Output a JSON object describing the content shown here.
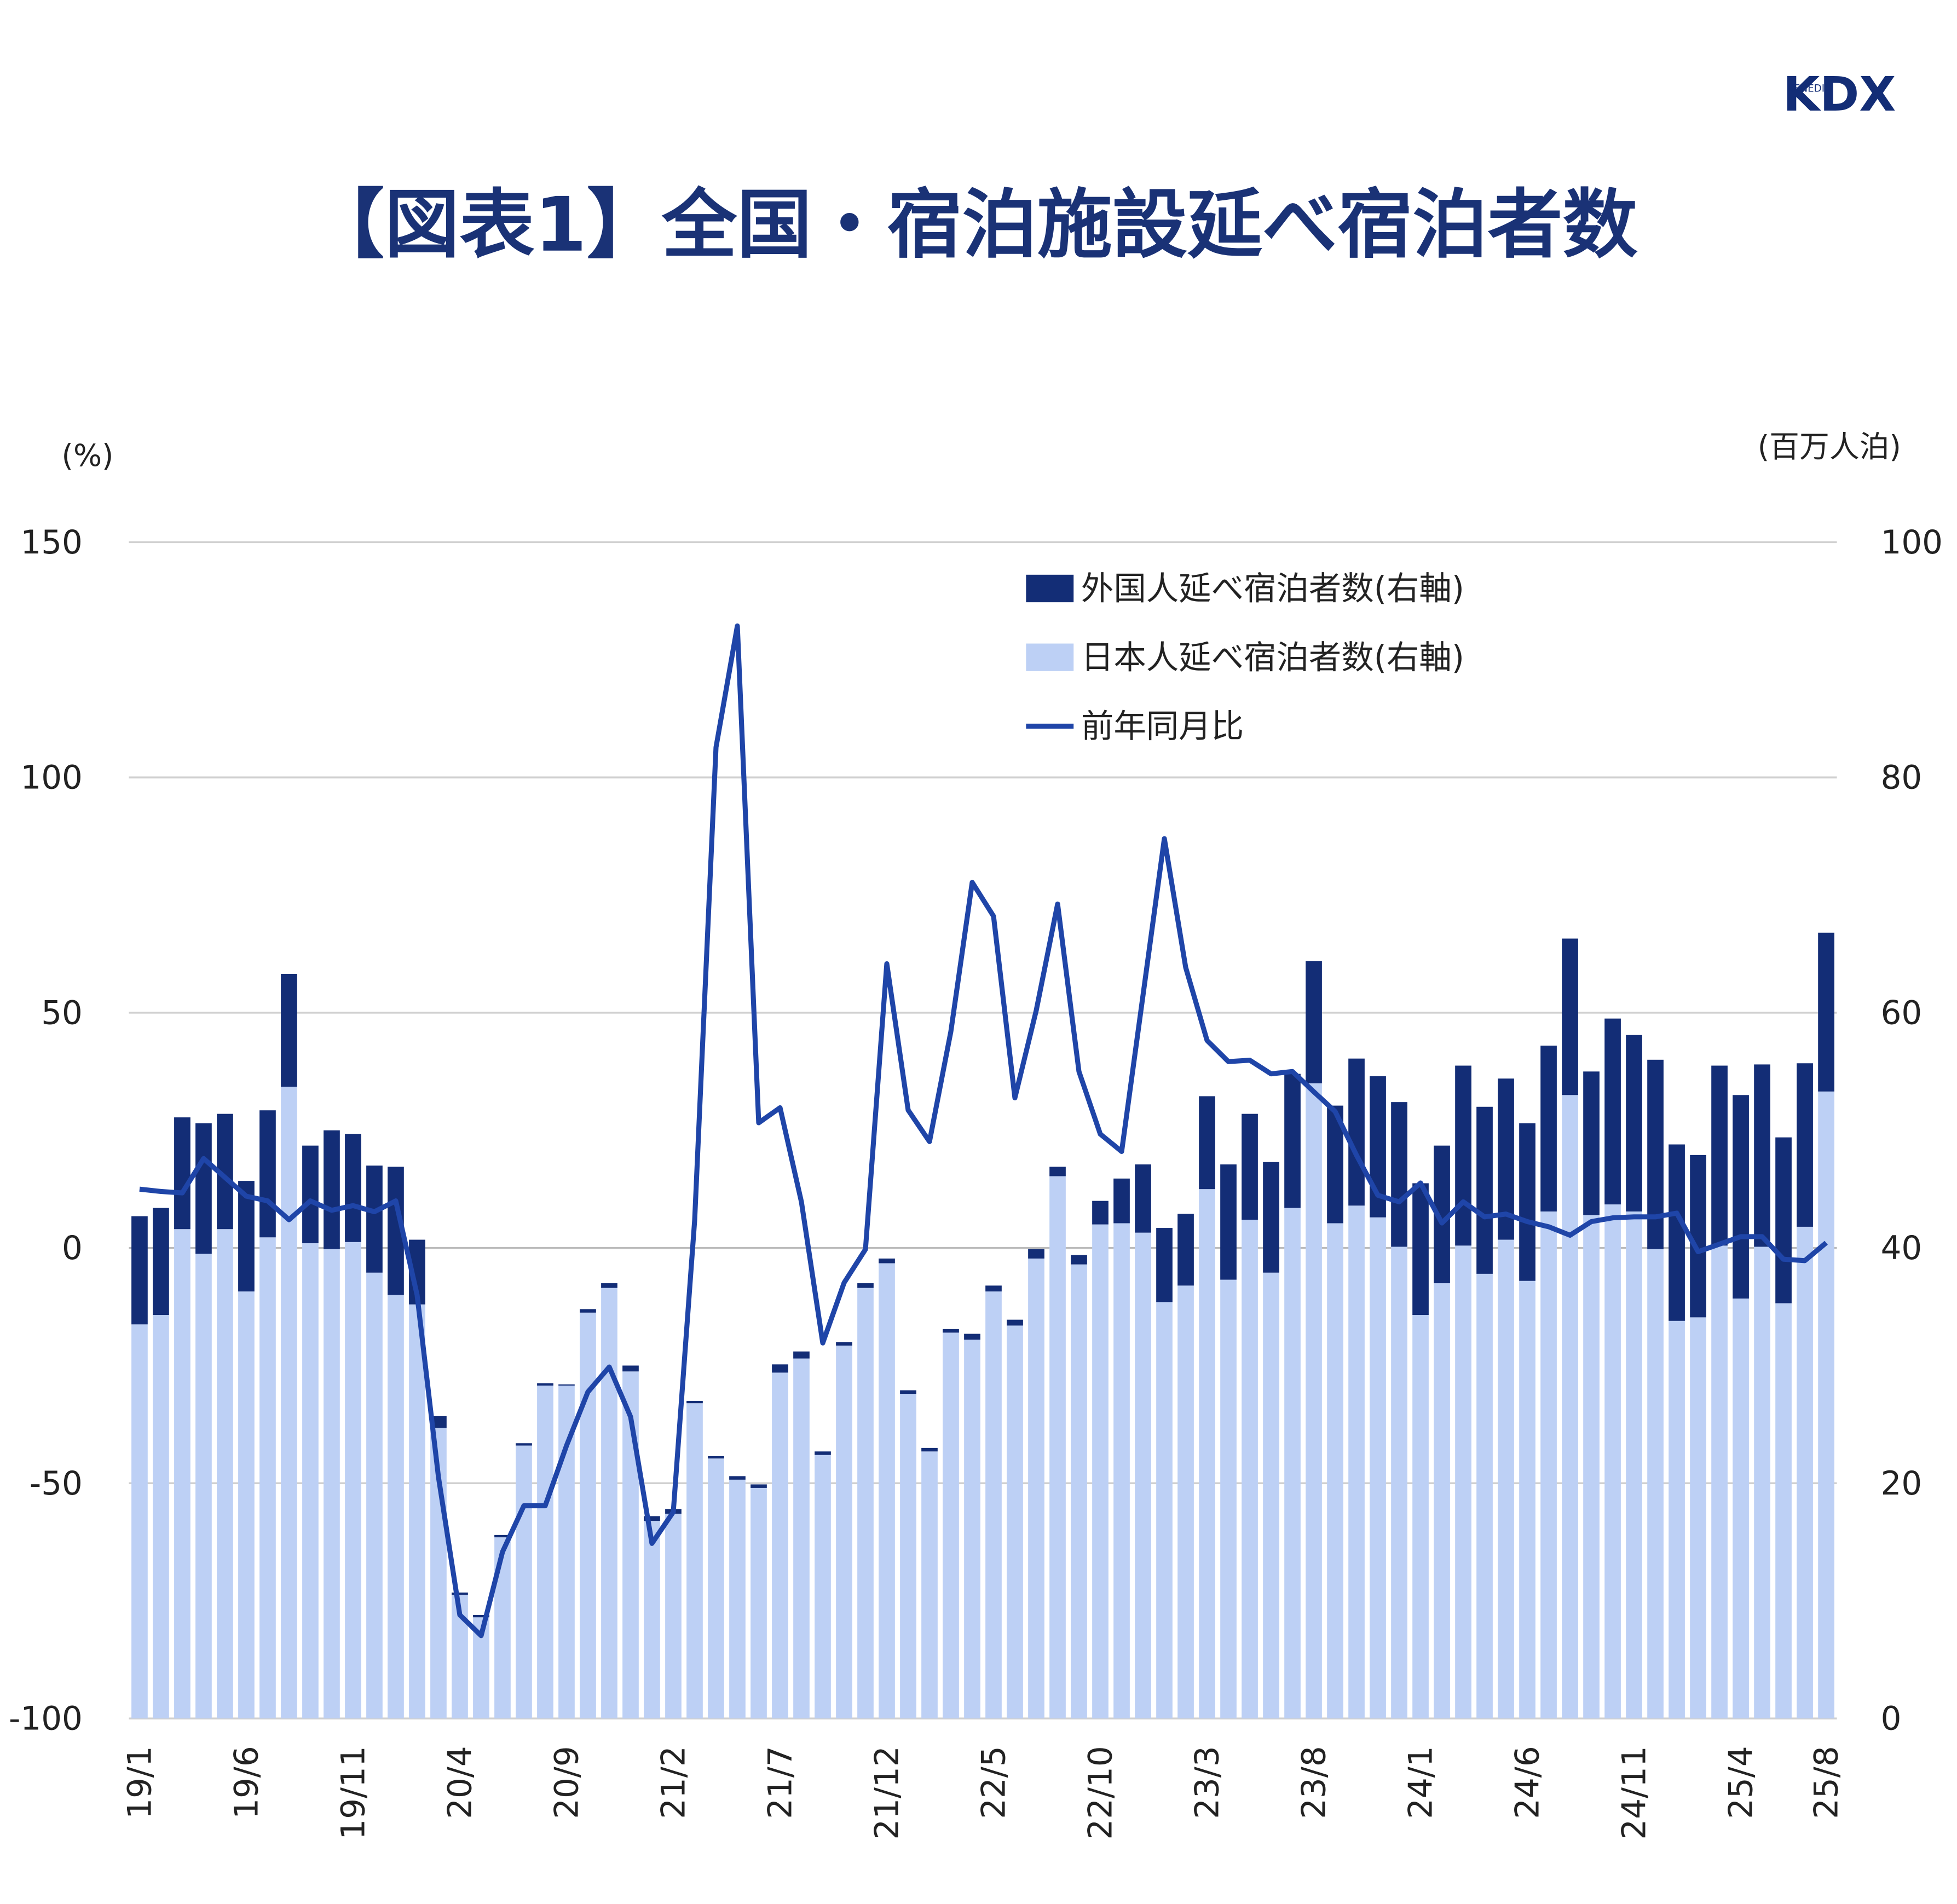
{
  "logo": {
    "name": "KDX",
    "sub": "KENEDIX"
  },
  "chart_data": {
    "type": "bar-line",
    "title": "【図表1】全国・宿泊施設延べ宿泊者数",
    "y_label": "(%)",
    "y2_label": "(百万人泊)",
    "categories": [
      "19/1",
      null,
      null,
      null,
      null,
      "19/6",
      null,
      null,
      null,
      null,
      "19/11",
      null,
      null,
      null,
      null,
      "20/4",
      null,
      null,
      null,
      null,
      "20/9",
      null,
      null,
      null,
      null,
      "21/2",
      null,
      null,
      null,
      null,
      "21/7",
      null,
      null,
      null,
      null,
      "21/12",
      null,
      null,
      null,
      null,
      "22/5",
      null,
      null,
      null,
      null,
      "22/10",
      null,
      null,
      null,
      null,
      "23/3",
      null,
      null,
      null,
      null,
      "23/8",
      null,
      null,
      null,
      null,
      "24/1",
      null,
      null,
      null,
      null,
      "24/6",
      null,
      null,
      null,
      null,
      "24/11",
      null,
      null,
      null,
      null,
      "25/4",
      null,
      null,
      null,
      "25/8"
    ],
    "series": [
      {
        "name": "外国人延べ宿泊者数(右軸)",
        "kind": "bar",
        "axis": "y2",
        "color": "#132d76",
        "values": [
          9.2,
          9.1,
          9.5,
          11.1,
          9.8,
          9.4,
          10.8,
          9.6,
          8.3,
          10.1,
          9.2,
          9.1,
          10.9,
          5.5,
          1.0,
          0.2,
          0.2,
          0.2,
          0.2,
          0.2,
          0.1,
          0.3,
          0.4,
          0.5,
          0.4,
          0.4,
          0.2,
          0.2,
          0.3,
          0.3,
          0.7,
          0.6,
          0.3,
          0.3,
          0.4,
          0.4,
          0.3,
          0.3,
          0.3,
          0.5,
          0.5,
          0.5,
          0.8,
          0.8,
          0.8,
          2.0,
          3.8,
          5.8,
          6.3,
          6.1,
          7.9,
          9.8,
          9.0,
          9.4,
          11.4,
          10.4,
          10.0,
          12.5,
          12.0,
          12.3,
          11.2,
          11.7,
          15.3,
          14.2,
          13.7,
          13.4,
          14.1,
          13.3,
          12.2,
          15.8,
          15.0,
          16.1,
          15.0,
          13.8,
          15.3,
          17.3,
          15.5,
          14.1,
          13.9,
          13.5
        ]
      },
      {
        "name": "日本人延べ宿泊者数(右軸)",
        "kind": "bar",
        "axis": "y2",
        "color": "#bdd0f5",
        "values": [
          33.5,
          34.3,
          41.6,
          39.5,
          41.6,
          36.3,
          40.9,
          53.7,
          40.4,
          39.9,
          40.5,
          37.9,
          36.0,
          35.2,
          24.7,
          10.5,
          8.6,
          15.4,
          23.2,
          28.3,
          28.3,
          34.5,
          36.6,
          29.5,
          16.8,
          17.4,
          26.8,
          22.1,
          20.3,
          19.6,
          29.4,
          30.6,
          22.4,
          31.7,
          36.6,
          38.7,
          27.6,
          22.7,
          32.8,
          32.2,
          36.3,
          33.4,
          39.1,
          46.1,
          38.6,
          42.0,
          42.1,
          41.3,
          35.4,
          36.8,
          45.0,
          37.3,
          42.4,
          37.9,
          43.4,
          54.0,
          42.1,
          43.6,
          42.6,
          40.1,
          34.3,
          37.0,
          40.2,
          37.8,
          40.7,
          37.2,
          43.1,
          53.0,
          42.8,
          43.7,
          43.1,
          39.9,
          33.8,
          34.1,
          40.2,
          35.7,
          40.1,
          35.3,
          41.8,
          53.3
        ]
      },
      {
        "name": "前年同月比",
        "kind": "line",
        "axis": "y",
        "color": "#1f45a8",
        "values": [
          12.5,
          12,
          11.7,
          19,
          15,
          11,
          10,
          6,
          10,
          8,
          9,
          7.7,
          10,
          -10,
          -48.7,
          -78,
          -82.4,
          -64.6,
          -54.8,
          -54.8,
          -42,
          -30.6,
          -25.3,
          -35.9,
          -62.8,
          -56.1,
          5.9,
          106.4,
          132.2,
          26.6,
          29.8,
          9.8,
          -20.2,
          -7.4,
          -0.3,
          60.4,
          29.3,
          22.6,
          46,
          77.7,
          70.5,
          31.9,
          50.5,
          73.1,
          37.5,
          24.2,
          20.5,
          53.7,
          87,
          59.6,
          44.1,
          39.6,
          39.9,
          37,
          37.5,
          33.2,
          29,
          19.7,
          11.2,
          9.8,
          13.8,
          5.3,
          9.8,
          6.6,
          7.2,
          5.6,
          4.5,
          2.7,
          5.6,
          6.4,
          6.6,
          6.6,
          7.4,
          -0.8,
          0.8,
          2.4,
          2.4,
          -2.4,
          -2.7,
          1.1
        ]
      }
    ],
    "ylim": [
      -100,
      150
    ],
    "yticks": [
      -100,
      -50,
      0,
      50,
      100,
      150
    ],
    "y2lim": [
      0,
      100
    ],
    "y2ticks": [
      0,
      20,
      40,
      60,
      80,
      100
    ],
    "grid": true,
    "legend": "top-right"
  }
}
